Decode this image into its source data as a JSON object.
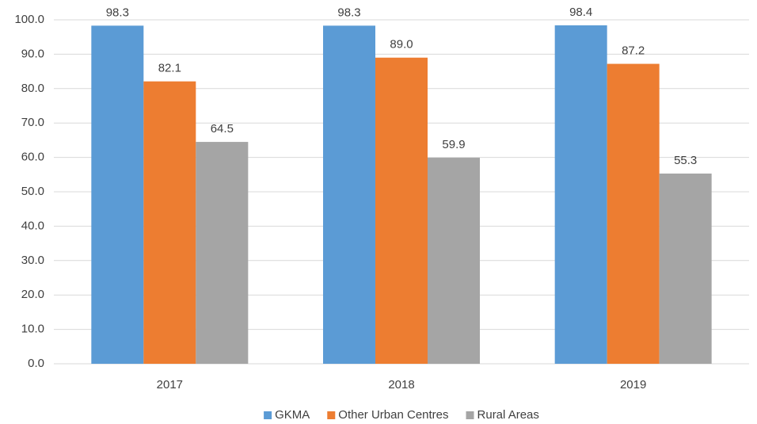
{
  "chart_data": {
    "type": "bar",
    "categories": [
      "2017",
      "2018",
      "2019"
    ],
    "series": [
      {
        "name": "GKMA",
        "color": "#5b9bd5",
        "values": [
          98.3,
          98.3,
          98.4
        ],
        "value_labels": [
          "98.3",
          "98.3",
          "98.4"
        ]
      },
      {
        "name": "Other Urban Centres",
        "color": "#ed7d31",
        "values": [
          82.1,
          89.0,
          87.2
        ],
        "value_labels": [
          "82.1",
          "89.0",
          "87.2"
        ]
      },
      {
        "name": "Rural Areas",
        "color": "#a5a5a5",
        "values": [
          64.5,
          59.9,
          55.3
        ],
        "value_labels": [
          "64.5",
          "59.9",
          "55.3"
        ]
      }
    ],
    "ylim": [
      0,
      100
    ],
    "yticks": [
      {
        "value": 0,
        "label": "0.0"
      },
      {
        "value": 10,
        "label": "10.0"
      },
      {
        "value": 20,
        "label": "20.0"
      },
      {
        "value": 30,
        "label": "30.0"
      },
      {
        "value": 40,
        "label": "40.0"
      },
      {
        "value": 50,
        "label": "50.0"
      },
      {
        "value": 60,
        "label": "60.0"
      },
      {
        "value": 70,
        "label": "70.0"
      },
      {
        "value": 80,
        "label": "80.0"
      },
      {
        "value": 90,
        "label": "90.0"
      },
      {
        "value": 100,
        "label": "100.0"
      }
    ],
    "grid": true,
    "legend": "bottom"
  }
}
